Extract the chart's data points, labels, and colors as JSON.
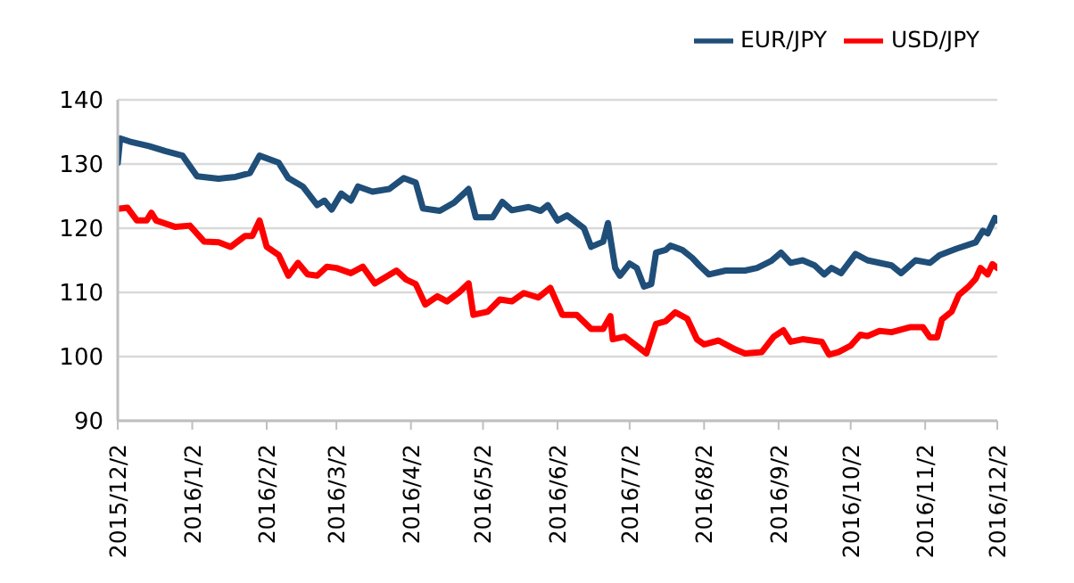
{
  "chart_data": {
    "type": "line",
    "xlim": [
      "2015-12-02",
      "2016-12-02"
    ],
    "xticks": [
      {
        "value": "2015-12-02",
        "label": "2015/12/2"
      },
      {
        "value": "2016-01-02",
        "label": "2016/1/2"
      },
      {
        "value": "2016-02-02",
        "label": "2016/2/2"
      },
      {
        "value": "2016-03-02",
        "label": "2016/3/2"
      },
      {
        "value": "2016-04-02",
        "label": "2016/4/2"
      },
      {
        "value": "2016-05-02",
        "label": "2016/5/2"
      },
      {
        "value": "2016-06-02",
        "label": "2016/6/2"
      },
      {
        "value": "2016-07-02",
        "label": "2016/7/2"
      },
      {
        "value": "2016-08-02",
        "label": "2016/8/2"
      },
      {
        "value": "2016-09-02",
        "label": "2016/9/2"
      },
      {
        "value": "2016-10-02",
        "label": "2016/10/2"
      },
      {
        "value": "2016-11-02",
        "label": "2016/11/2"
      },
      {
        "value": "2016-12-02",
        "label": "2016/12/2"
      }
    ],
    "ylim": [
      90,
      140
    ],
    "yticks": [
      90,
      100,
      110,
      120,
      130,
      140
    ],
    "grid": "y",
    "legend": "top right",
    "marker": "none",
    "line_style": "solid",
    "series": [
      {
        "name": "USD/JPY",
        "color": "#ff0000",
        "x": [
          "2015-12-02",
          "2015-12-06",
          "2015-12-10",
          "2015-12-14",
          "2015-12-16",
          "2015-12-18",
          "2015-12-26",
          "2016-01-01",
          "2016-01-07",
          "2016-01-13",
          "2016-01-18",
          "2016-01-24",
          "2016-01-27",
          "2016-01-30",
          "2016-02-02",
          "2016-02-07",
          "2016-02-11",
          "2016-02-15",
          "2016-02-19",
          "2016-02-23",
          "2016-02-27",
          "2016-03-02",
          "2016-03-08",
          "2016-03-13",
          "2016-03-18",
          "2016-03-27",
          "2016-03-31",
          "2016-04-04",
          "2016-04-08",
          "2016-04-13",
          "2016-04-17",
          "2016-04-22",
          "2016-04-26",
          "2016-04-28",
          "2016-05-04",
          "2016-05-09",
          "2016-05-14",
          "2016-05-19",
          "2016-05-25",
          "2016-05-30",
          "2016-06-04",
          "2016-06-10",
          "2016-06-16",
          "2016-06-21",
          "2016-06-24",
          "2016-06-25",
          "2016-06-30",
          "2016-07-09",
          "2016-07-13",
          "2016-07-17",
          "2016-07-21",
          "2016-07-26",
          "2016-07-30",
          "2016-08-02",
          "2016-08-08",
          "2016-08-15",
          "2016-08-19",
          "2016-08-26",
          "2016-08-31",
          "2016-09-04",
          "2016-09-07",
          "2016-09-12",
          "2016-09-20",
          "2016-09-23",
          "2016-09-27",
          "2016-10-02",
          "2016-10-06",
          "2016-10-09",
          "2016-10-14",
          "2016-10-19",
          "2016-10-27",
          "2016-11-01",
          "2016-11-04",
          "2016-11-07",
          "2016-11-09",
          "2016-11-13",
          "2016-11-16",
          "2016-11-20",
          "2016-11-23",
          "2016-11-25",
          "2016-11-28",
          "2016-11-30",
          "2016-12-02"
        ],
        "values": [
          123.0,
          123.2,
          121.2,
          121.2,
          122.4,
          121.2,
          120.2,
          120.4,
          117.9,
          117.8,
          117.1,
          118.8,
          118.8,
          121.2,
          117.1,
          115.8,
          112.6,
          114.6,
          112.8,
          112.6,
          114.0,
          113.8,
          113.0,
          114.0,
          111.4,
          113.4,
          112.0,
          111.3,
          108.1,
          109.4,
          108.6,
          110.0,
          111.4,
          106.5,
          107.0,
          108.9,
          108.6,
          109.9,
          109.2,
          110.7,
          106.5,
          106.5,
          104.3,
          104.3,
          106.3,
          102.7,
          103.1,
          100.5,
          105.1,
          105.5,
          106.9,
          105.9,
          102.7,
          101.9,
          102.5,
          101.1,
          100.5,
          100.7,
          103.1,
          104.1,
          102.3,
          102.7,
          102.3,
          100.3,
          100.7,
          101.7,
          103.4,
          103.2,
          104.0,
          103.8,
          104.6,
          104.6,
          103.0,
          103.0,
          105.8,
          107.0,
          109.6,
          110.9,
          112.1,
          113.8,
          112.8,
          114.4,
          113.8
        ]
      },
      {
        "name": "EUR/JPY",
        "color": "#1f4e79",
        "x": [
          "2015-12-02",
          "2015-12-03",
          "2015-12-07",
          "2015-12-15",
          "2015-12-22",
          "2015-12-29",
          "2016-01-04",
          "2016-01-13",
          "2016-01-20",
          "2016-01-26",
          "2016-01-30",
          "2016-02-07",
          "2016-02-11",
          "2016-02-17",
          "2016-02-23",
          "2016-02-26",
          "2016-02-29",
          "2016-03-04",
          "2016-03-08",
          "2016-03-11",
          "2016-03-17",
          "2016-03-24",
          "2016-03-30",
          "2016-04-04",
          "2016-04-07",
          "2016-04-14",
          "2016-04-20",
          "2016-04-26",
          "2016-04-29",
          "2016-05-06",
          "2016-05-10",
          "2016-05-14",
          "2016-05-21",
          "2016-05-26",
          "2016-05-29",
          "2016-06-02",
          "2016-06-06",
          "2016-06-13",
          "2016-06-16",
          "2016-06-21",
          "2016-06-23",
          "2016-06-26",
          "2016-06-28",
          "2016-07-02",
          "2016-07-05",
          "2016-07-08",
          "2016-07-11",
          "2016-07-13",
          "2016-07-17",
          "2016-07-19",
          "2016-07-24",
          "2016-07-28",
          "2016-07-31",
          "2016-08-04",
          "2016-08-11",
          "2016-08-19",
          "2016-08-24",
          "2016-08-30",
          "2016-09-03",
          "2016-09-07",
          "2016-09-12",
          "2016-09-17",
          "2016-09-21",
          "2016-09-24",
          "2016-09-28",
          "2016-10-04",
          "2016-10-09",
          "2016-10-19",
          "2016-10-23",
          "2016-10-29",
          "2016-11-04",
          "2016-11-08",
          "2016-11-15",
          "2016-11-23",
          "2016-11-26",
          "2016-11-28",
          "2016-12-01",
          "2016-12-02"
        ],
        "values": [
          130.2,
          134.0,
          133.5,
          132.8,
          132.0,
          131.3,
          128.1,
          127.7,
          128.0,
          128.6,
          131.3,
          130.2,
          127.8,
          126.5,
          123.6,
          124.3,
          122.9,
          125.4,
          124.3,
          126.5,
          125.7,
          126.1,
          127.8,
          127.1,
          123.1,
          122.7,
          124.0,
          126.1,
          121.7,
          121.7,
          124.1,
          122.8,
          123.3,
          122.7,
          123.6,
          121.2,
          122.0,
          120.0,
          117.1,
          117.9,
          120.8,
          113.8,
          112.6,
          114.5,
          113.8,
          110.9,
          111.3,
          116.2,
          116.6,
          117.3,
          116.6,
          115.4,
          114.2,
          112.8,
          113.4,
          113.4,
          113.8,
          114.9,
          116.2,
          114.6,
          115.0,
          114.2,
          112.8,
          113.8,
          113.0,
          116.0,
          115.0,
          114.2,
          113.0,
          115.0,
          114.6,
          115.8,
          116.8,
          117.8,
          119.6,
          119.2,
          121.6,
          121.2
        ]
      }
    ]
  }
}
